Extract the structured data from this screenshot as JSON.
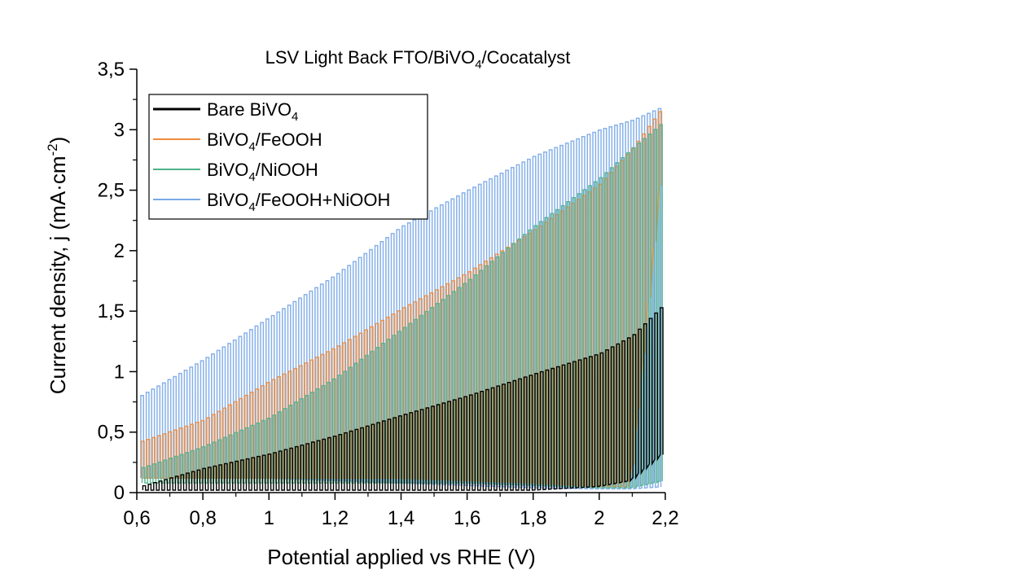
{
  "chart_data": {
    "type": "line",
    "title": "LSV Light Back FTO/BiVO",
    "title_sub": "4",
    "title_tail": "/Cocatalyst",
    "xlabel": "Potential applied vs RHE (V)",
    "ylabel": "Current density, j (mA·cm",
    "ylabel_sup": "-2",
    "ylabel_tail": ")",
    "xlim": [
      0.6,
      2.2
    ],
    "ylim": [
      0,
      3.5
    ],
    "x_ticks": [
      "0,6",
      "0,8",
      "1",
      "1,2",
      "1,4",
      "1,6",
      "1,8",
      "2",
      "2,2"
    ],
    "y_ticks": [
      "0",
      "0,5",
      "1",
      "1,5",
      "2",
      "2,5",
      "3",
      "3,5"
    ],
    "x_tick_values": [
      0.6,
      0.8,
      1.0,
      1.2,
      1.4,
      1.6,
      1.8,
      2.0,
      2.2
    ],
    "y_tick_values": [
      0,
      0.5,
      1.0,
      1.5,
      2.0,
      2.5,
      3.0,
      3.5
    ],
    "grid": false,
    "legend_position": "top-left",
    "chopped_light": true,
    "series": [
      {
        "name": "Bare BiVO",
        "name_sub": "4",
        "color": "#000000",
        "x": [
          0.61,
          0.8,
          1.0,
          1.2,
          1.4,
          1.6,
          1.8,
          2.0,
          2.1,
          2.2
        ],
        "y_on": [
          0.05,
          0.2,
          0.32,
          0.47,
          0.64,
          0.8,
          0.98,
          1.15,
          1.3,
          1.57
        ],
        "y_off": [
          0.02,
          0.02,
          0.02,
          0.02,
          0.02,
          0.02,
          0.02,
          0.05,
          0.1,
          0.33
        ]
      },
      {
        "name": "BiVO",
        "name_sub": "4",
        "name_tail": "/FeOOH",
        "color": "#f08c3c",
        "x": [
          0.61,
          0.8,
          1.0,
          1.2,
          1.4,
          1.6,
          1.8,
          2.0,
          2.1,
          2.2
        ],
        "y_on": [
          0.42,
          0.6,
          0.92,
          1.2,
          1.52,
          1.82,
          2.17,
          2.55,
          2.85,
          3.22
        ],
        "y_off": [
          0.12,
          0.12,
          0.12,
          0.12,
          0.12,
          0.1,
          0.08,
          0.05,
          0.05,
          2.85
        ]
      },
      {
        "name": "BiVO",
        "name_sub": "4",
        "name_tail": "/NiOOH",
        "color": "#4fb38a",
        "x": [
          0.61,
          0.8,
          1.0,
          1.2,
          1.4,
          1.6,
          1.8,
          2.0,
          2.1,
          2.2
        ],
        "y_on": [
          0.2,
          0.38,
          0.62,
          0.95,
          1.35,
          1.75,
          2.2,
          2.6,
          2.85,
          3.08
        ],
        "y_off": [
          0.08,
          0.08,
          0.08,
          0.08,
          0.08,
          0.08,
          0.06,
          0.04,
          0.04,
          0.1
        ]
      },
      {
        "name": "BiVO",
        "name_sub": "4",
        "name_tail": "/FeOOH+NiOOH",
        "color": "#7aa8e6",
        "x": [
          0.61,
          0.8,
          1.0,
          1.2,
          1.4,
          1.6,
          1.8,
          2.0,
          2.1,
          2.2
        ],
        "y_on": [
          0.8,
          1.1,
          1.45,
          1.8,
          2.2,
          2.5,
          2.78,
          3.0,
          3.08,
          3.2
        ],
        "y_off": [
          0.12,
          0.12,
          0.12,
          0.1,
          0.08,
          0.06,
          0.04,
          0.03,
          0.03,
          0.05
        ]
      }
    ]
  }
}
